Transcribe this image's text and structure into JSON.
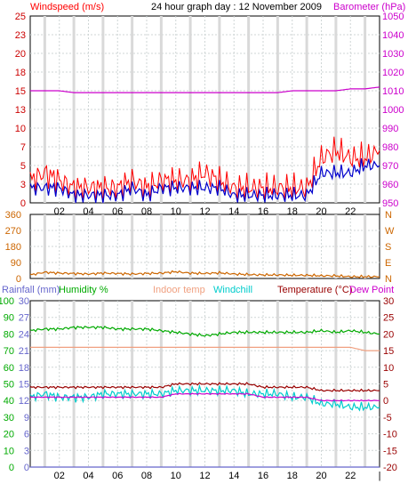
{
  "header": {
    "title": "24 hour graph day : 12 November 2009",
    "left_label": "Windspeed (m/s)",
    "right_label": "Barometer (hPa)"
  },
  "bottom_header": {
    "rainfall": "Rainfall (mm)",
    "humidity": "Humidity %",
    "indoor": "Indoor temp",
    "windchill": "Windchill",
    "temperature": "Temperature (°C)",
    "dewpoint": "Dew Point"
  },
  "colors": {
    "wind_gust": "#ff0000",
    "wind_avg": "#0000cc",
    "barometer": "#cc00cc",
    "direction": "#cc6600",
    "humidity": "#00aa00",
    "indoor": "#f0a080",
    "windchill": "#00cccc",
    "temperature": "#990000",
    "dewpoint": "#cc00cc",
    "rainfall": "#6666cc",
    "grid": "#cfd6d6"
  },
  "x_ticks": [
    "02",
    "04",
    "06",
    "08",
    "10",
    "12",
    "14",
    "16",
    "18",
    "20",
    "22"
  ],
  "chart_data": [
    {
      "type": "line",
      "title": "24 hour graph day : 12 November 2009",
      "ylabel": "Windspeed (m/s)",
      "ylim": [
        0,
        25
      ],
      "y_ticks": [
        "0",
        "3",
        "5",
        "7",
        "10",
        "13",
        "15",
        "18",
        "20",
        "23",
        "25"
      ],
      "y2label": "Barometer (hPa)",
      "y2lim": [
        950,
        1050
      ],
      "y2_ticks": [
        "950",
        "960",
        "970",
        "980",
        "990",
        "1000",
        "1010",
        "1020",
        "1030",
        "1040",
        "1050"
      ],
      "x": [
        0,
        1,
        2,
        3,
        4,
        5,
        6,
        7,
        8,
        9,
        10,
        11,
        12,
        13,
        14,
        15,
        16,
        17,
        18,
        19,
        20,
        21,
        22,
        23,
        24
      ],
      "series": [
        {
          "name": "Windspeed gust",
          "values": [
            3,
            4,
            3,
            2,
            2,
            2,
            2,
            3,
            2,
            3,
            3,
            3,
            4,
            3,
            2,
            2,
            2,
            2,
            2,
            2,
            6,
            7,
            6,
            6,
            7
          ]
        },
        {
          "name": "Windspeed avg",
          "values": [
            2,
            2,
            2,
            1,
            1,
            1,
            1,
            2,
            1,
            2,
            2,
            2,
            2,
            2,
            1,
            1,
            1,
            1,
            1,
            1,
            4,
            4,
            4,
            5,
            5
          ]
        },
        {
          "name": "Barometer",
          "values": [
            1010,
            1010,
            1010,
            1009,
            1009,
            1009,
            1009,
            1009,
            1009,
            1009,
            1009,
            1009,
            1009,
            1009,
            1009,
            1009,
            1009,
            1009,
            1010,
            1010,
            1010,
            1010,
            1011,
            1011,
            1012
          ]
        }
      ],
      "grid": true
    },
    {
      "type": "line",
      "ylim": [
        0,
        360
      ],
      "y_ticks": [
        "0",
        "90",
        "180",
        "270",
        "360"
      ],
      "y2_ticks": [
        "N",
        "E",
        "S",
        "W",
        "N"
      ],
      "x": [
        0,
        1,
        2,
        3,
        4,
        5,
        6,
        7,
        8,
        9,
        10,
        11,
        12,
        13,
        14,
        15,
        16,
        17,
        18,
        19,
        20,
        21,
        22,
        23,
        24
      ],
      "series": [
        {
          "name": "Wind direction",
          "values": [
            20,
            35,
            30,
            28,
            25,
            30,
            28,
            25,
            28,
            30,
            38,
            30,
            28,
            32,
            25,
            22,
            20,
            20,
            18,
            18,
            15,
            15,
            10,
            10,
            10
          ]
        }
      ],
      "grid": true
    },
    {
      "type": "line",
      "y_ticks_humidity": [
        "0",
        "10",
        "20",
        "30",
        "40",
        "50",
        "60",
        "70",
        "80",
        "90",
        "100"
      ],
      "y_ticks_rain": [
        "0",
        "3",
        "6",
        "9",
        "12",
        "15",
        "18",
        "21",
        "24",
        "27",
        "30"
      ],
      "y2lim": [
        -20,
        30
      ],
      "y2_ticks": [
        "-20",
        "-15",
        "-10",
        "-5",
        "0",
        "5",
        "10",
        "15",
        "20",
        "25",
        "30"
      ],
      "x": [
        0,
        1,
        2,
        3,
        4,
        5,
        6,
        7,
        8,
        9,
        10,
        11,
        12,
        13,
        14,
        15,
        16,
        17,
        18,
        19,
        20,
        21,
        22,
        23,
        24
      ],
      "series": [
        {
          "name": "Humidity %",
          "axis": "humidity",
          "values": [
            82,
            83,
            83,
            84,
            84,
            84,
            83,
            83,
            83,
            82,
            81,
            80,
            79,
            80,
            81,
            81,
            81,
            81,
            81,
            81,
            82,
            81,
            82,
            81,
            80
          ]
        },
        {
          "name": "Indoor temp",
          "axis": "temp",
          "values": [
            16,
            16,
            16,
            16,
            16,
            16,
            16,
            16,
            16,
            16,
            16,
            16,
            16,
            16,
            16,
            16,
            16,
            16,
            16,
            16,
            16,
            16,
            16,
            15,
            15
          ]
        },
        {
          "name": "Windchill",
          "axis": "temp",
          "values": [
            1,
            2,
            1,
            1,
            1,
            2,
            2,
            2,
            2,
            2,
            3,
            3,
            3,
            3,
            3,
            2,
            2,
            2,
            1,
            1,
            -1,
            -1,
            -2,
            -2,
            -2
          ]
        },
        {
          "name": "Temperature (°C)",
          "axis": "temp",
          "values": [
            4,
            4,
            4,
            4,
            4,
            4,
            4,
            4,
            4,
            4,
            5,
            5,
            5,
            5,
            5,
            5,
            4,
            4,
            4,
            4,
            3,
            3,
            3,
            3,
            3
          ]
        },
        {
          "name": "Dew Point",
          "axis": "temp",
          "values": [
            1,
            1,
            1,
            1,
            1,
            1,
            1,
            1,
            1,
            1,
            2,
            2,
            2,
            2,
            2,
            2,
            1,
            1,
            1,
            1,
            0,
            0,
            0,
            0,
            0
          ]
        },
        {
          "name": "Rainfall (mm)",
          "axis": "rain",
          "values": [
            0,
            0,
            0,
            0,
            0,
            0,
            0,
            0,
            0,
            0,
            0,
            0,
            0,
            0,
            0,
            0,
            0,
            0,
            0,
            0,
            0,
            0,
            0,
            0,
            0
          ]
        }
      ],
      "grid": true
    }
  ]
}
